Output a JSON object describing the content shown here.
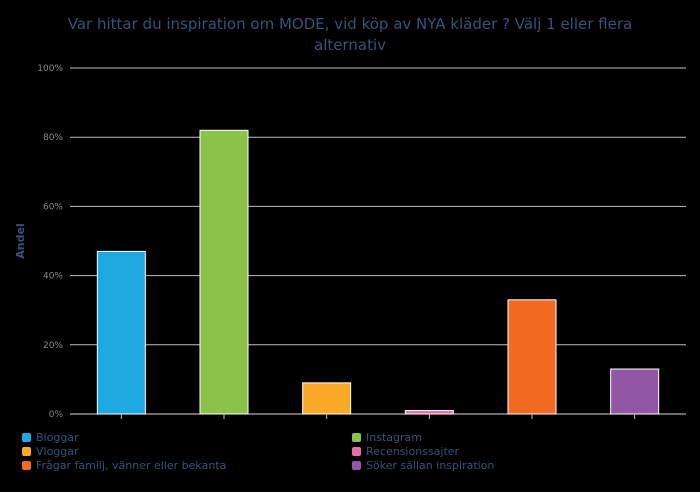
{
  "chart_data": {
    "type": "bar",
    "title_lines": [
      "Var hittar du inspiration om MODE, vid köp av NYA kläder ? Välj 1 eller flera",
      "alternativ"
    ],
    "ylabel": "Andel",
    "ylim": [
      0,
      100
    ],
    "yticks": [
      "0%",
      "20%",
      "40%",
      "60%",
      "80%",
      "100%"
    ],
    "ytick_values": [
      0,
      20,
      40,
      60,
      80,
      100
    ],
    "grid": true,
    "legend_placement": "bottom",
    "series": [
      {
        "name": "Bloggar",
        "value": 47,
        "color": "#1ea8e0"
      },
      {
        "name": "Instagram",
        "value": 82,
        "color": "#8bc34a"
      },
      {
        "name": "Vloggar",
        "value": 9,
        "color": "#fbaa27"
      },
      {
        "name": "Recensionssajter",
        "value": 1,
        "color": "#e86ea8"
      },
      {
        "name": "Frågar familj, vänner eller bekanta",
        "value": 33,
        "color": "#f26a21"
      },
      {
        "name": "Söker sällan inspiration",
        "value": 13,
        "color": "#9256a5"
      }
    ]
  }
}
